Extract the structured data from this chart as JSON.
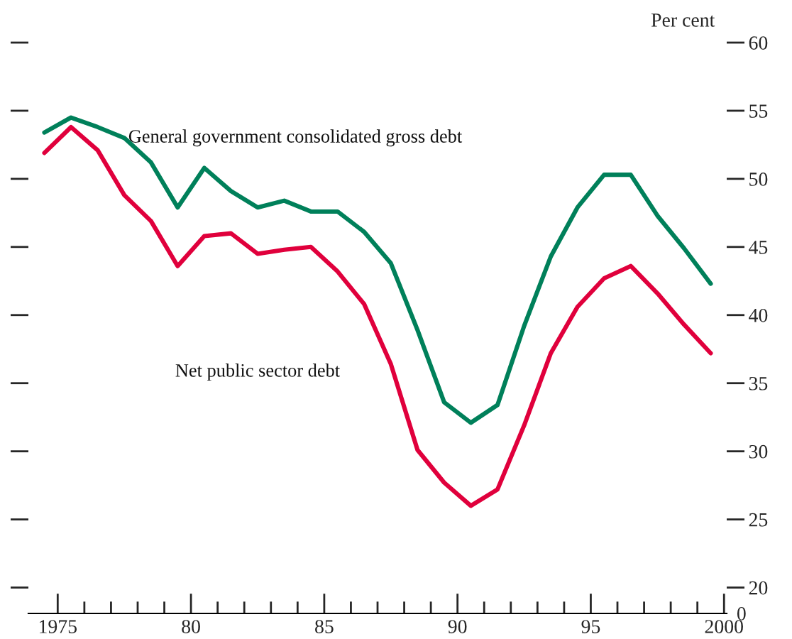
{
  "chart_data": {
    "type": "line",
    "ylabel": "Per cent",
    "x": [
      1974.5,
      1975.5,
      1976.5,
      1977.5,
      1978.5,
      1979.5,
      1980.5,
      1981.5,
      1982.5,
      1983.5,
      1984.5,
      1985.5,
      1986.5,
      1987.5,
      1988.5,
      1989.5,
      1990.5,
      1991.5,
      1992.5,
      1993.5,
      1994.5,
      1995.5,
      1996.5,
      1997.5,
      1998.5,
      1999.5
    ],
    "series": [
      {
        "name": "General government consolidated gross debt",
        "color": "#00805a",
        "values": [
          53.4,
          54.5,
          53.8,
          53.0,
          51.2,
          47.9,
          50.8,
          49.1,
          47.9,
          48.4,
          47.6,
          47.6,
          46.1,
          43.8,
          38.9,
          33.6,
          32.1,
          33.4,
          39.2,
          44.3,
          47.9,
          50.3,
          50.3,
          47.3,
          44.9,
          42.3
        ]
      },
      {
        "name": "Net public sector debt",
        "color": "#e0003c",
        "values": [
          51.9,
          53.8,
          52.1,
          48.8,
          46.9,
          43.6,
          45.8,
          46.0,
          44.5,
          44.8,
          45.0,
          43.2,
          40.8,
          36.4,
          30.1,
          27.7,
          26.0,
          27.2,
          31.9,
          37.2,
          40.6,
          42.7,
          43.6,
          41.6,
          39.3,
          37.2
        ]
      }
    ],
    "xlim": [
      1973.9,
      2000.1
    ],
    "xticks": [
      1975,
      {
        "value": 1976,
        "label": null
      },
      {
        "value": 1977,
        "label": null
      },
      {
        "value": 1978,
        "label": null
      },
      {
        "value": 1979,
        "label": null
      },
      {
        "value": 1980,
        "label": "80"
      },
      {
        "value": 1981,
        "label": null
      },
      {
        "value": 1982,
        "label": null
      },
      {
        "value": 1983,
        "label": null
      },
      {
        "value": 1984,
        "label": null
      },
      {
        "value": 1985,
        "label": "85"
      },
      {
        "value": 1986,
        "label": null
      },
      {
        "value": 1987,
        "label": null
      },
      {
        "value": 1988,
        "label": null
      },
      {
        "value": 1989,
        "label": null
      },
      {
        "value": 1990,
        "label": "90"
      },
      {
        "value": 1991,
        "label": null
      },
      {
        "value": 1992,
        "label": null
      },
      {
        "value": 1993,
        "label": null
      },
      {
        "value": 1994,
        "label": null
      },
      {
        "value": 1995,
        "label": "95"
      },
      {
        "value": 1996,
        "label": null
      },
      {
        "value": 1997,
        "label": null
      },
      {
        "value": 1998,
        "label": null
      },
      {
        "value": 1999,
        "label": null
      },
      2000
    ],
    "ylim": [
      18.1,
      60
    ],
    "yticks": [
      20,
      25,
      30,
      35,
      40,
      45,
      50,
      55,
      60
    ],
    "annotations": [
      "0"
    ],
    "grid": false,
    "legend": false,
    "marker": "none",
    "line_style": "solid"
  }
}
